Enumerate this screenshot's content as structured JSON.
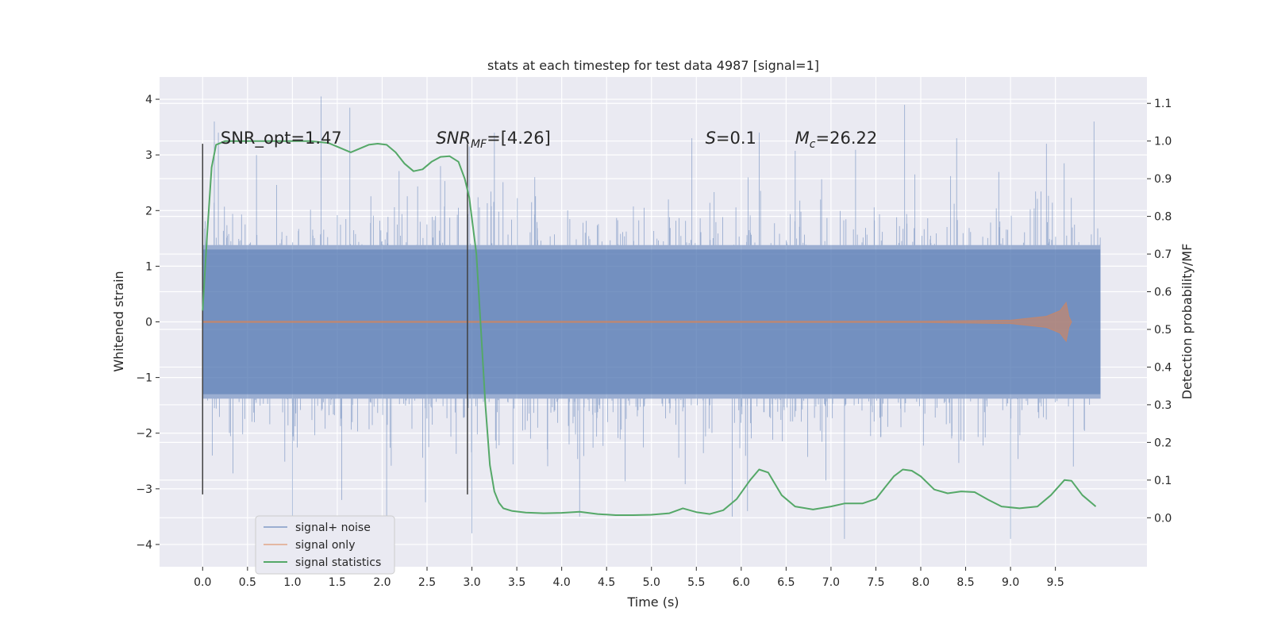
{
  "chart_data": {
    "type": "line",
    "title": "stats at each timestep for test data 4987 [signal=1]",
    "xlabel": "Time (s)",
    "ylabel": "Whitened strain",
    "ylabel_right": "Detection probability/MF",
    "xlim": [
      -0.48,
      10.52
    ],
    "ylim": [
      -4.4,
      4.4
    ],
    "ylim_right": [
      -0.13,
      1.17
    ],
    "x_ticks": [
      0.0,
      0.5,
      1.0,
      1.5,
      2.0,
      2.5,
      3.0,
      3.5,
      4.0,
      4.5,
      5.0,
      5.5,
      6.0,
      6.5,
      7.0,
      7.5,
      8.0,
      8.5,
      9.0,
      9.5
    ],
    "x_tick_labels": [
      "0.0",
      "0.5",
      "1.0",
      "1.5",
      "2.0",
      "2.5",
      "3.0",
      "3.5",
      "4.0",
      "4.5",
      "5.0",
      "5.5",
      "6.0",
      "6.5",
      "7.0",
      "7.5",
      "8.0",
      "8.5",
      "9.0",
      "9.5"
    ],
    "y_ticks": [
      -4,
      -3,
      -2,
      -1,
      0,
      1,
      2,
      3,
      4
    ],
    "y_tick_labels": [
      "−4",
      "−3",
      "−2",
      "−1",
      "0",
      "1",
      "2",
      "3",
      "4"
    ],
    "y_ticks_right": [
      0.0,
      0.1,
      0.2,
      0.3,
      0.4,
      0.5,
      0.6,
      0.7,
      0.8,
      0.9,
      1.0,
      1.1
    ],
    "y_tick_labels_right": [
      "0.0",
      "0.1",
      "0.2",
      "0.3",
      "0.4",
      "0.5",
      "0.6",
      "0.7",
      "0.8",
      "0.9",
      "1.0",
      "1.1"
    ],
    "grid": true,
    "legend_position": "lower-left",
    "series": [
      {
        "name": "signal+ noise",
        "color": "#4c72b0",
        "axis": "left",
        "x_range": [
          0.0,
          10.0
        ],
        "typical_range": [
          -1.3,
          1.3
        ],
        "peaks": [
          [
            0.13,
            3.6
          ],
          [
            0.6,
            3.0
          ],
          [
            1.0,
            -3.5
          ],
          [
            1.32,
            4.05
          ],
          [
            1.64,
            3.85
          ],
          [
            1.55,
            -3.2
          ],
          [
            2.05,
            -3.6
          ],
          [
            2.65,
            2.8
          ],
          [
            2.97,
            3.15
          ],
          [
            3.0,
            -3.8
          ],
          [
            3.25,
            3.4
          ],
          [
            3.7,
            2.6
          ],
          [
            4.2,
            -3.5
          ],
          [
            5.45,
            3.3
          ],
          [
            5.9,
            -3.5
          ],
          [
            6.07,
            -3.4
          ],
          [
            6.2,
            3.4
          ],
          [
            7.15,
            -3.9
          ],
          [
            7.82,
            3.9
          ],
          [
            8.4,
            3.3
          ],
          [
            9.0,
            -3.9
          ],
          [
            9.4,
            3.2
          ],
          [
            9.7,
            -2.6
          ],
          [
            9.93,
            3.6
          ]
        ]
      },
      {
        "name": "signal only",
        "color": "#dd8452",
        "axis": "left",
        "x": [
          0.0,
          8.0,
          9.0,
          9.4,
          9.55,
          9.62,
          9.65,
          9.68
        ],
        "envelope": [
          0.01,
          0.01,
          0.03,
          0.1,
          0.2,
          0.35,
          0.1,
          0.0
        ]
      },
      {
        "name": "signal statistics",
        "color": "#55a868",
        "axis": "right",
        "x": [
          0.0,
          0.05,
          0.1,
          0.15,
          0.25,
          0.5,
          0.8,
          1.2,
          1.4,
          1.55,
          1.65,
          1.75,
          1.85,
          1.95,
          2.05,
          2.15,
          2.25,
          2.35,
          2.45,
          2.55,
          2.65,
          2.75,
          2.85,
          2.92,
          2.97,
          3.05,
          3.1,
          3.15,
          3.2,
          3.25,
          3.3,
          3.35,
          3.45,
          3.6,
          3.8,
          4.0,
          4.2,
          4.4,
          4.6,
          4.8,
          5.0,
          5.2,
          5.35,
          5.5,
          5.65,
          5.8,
          5.95,
          6.1,
          6.2,
          6.3,
          6.45,
          6.6,
          6.8,
          7.0,
          7.15,
          7.35,
          7.5,
          7.6,
          7.7,
          7.8,
          7.9,
          8.0,
          8.15,
          8.3,
          8.45,
          8.6,
          8.75,
          8.9,
          9.1,
          9.3,
          9.45,
          9.6,
          9.68,
          9.8,
          9.95
        ],
        "values": [
          0.55,
          0.75,
          0.93,
          0.99,
          1.0,
          1.0,
          1.0,
          1.0,
          0.995,
          0.98,
          0.97,
          0.98,
          0.99,
          0.993,
          0.99,
          0.97,
          0.94,
          0.92,
          0.925,
          0.945,
          0.958,
          0.96,
          0.945,
          0.9,
          0.85,
          0.7,
          0.5,
          0.3,
          0.14,
          0.07,
          0.04,
          0.025,
          0.018,
          0.014,
          0.012,
          0.013,
          0.016,
          0.01,
          0.007,
          0.007,
          0.008,
          0.012,
          0.025,
          0.015,
          0.01,
          0.02,
          0.05,
          0.1,
          0.128,
          0.12,
          0.06,
          0.03,
          0.022,
          0.03,
          0.038,
          0.038,
          0.05,
          0.08,
          0.11,
          0.128,
          0.125,
          0.11,
          0.075,
          0.065,
          0.07,
          0.068,
          0.048,
          0.03,
          0.025,
          0.03,
          0.06,
          0.1,
          0.098,
          0.06,
          0.03
        ]
      }
    ],
    "vlines": [
      0.0,
      2.95
    ],
    "vline_range": [
      -3.1,
      3.2
    ],
    "annotations": [
      {
        "text": "SNR_opt=1.47",
        "x": 0.2
      },
      {
        "math": "SNR",
        "sub": "MF",
        "rest": "=[4.26]",
        "x": 2.6
      },
      {
        "math": "S",
        "rest": "=0.1",
        "x": 5.6
      },
      {
        "math": "M",
        "sub": "c",
        "rest": "=26.22",
        "x": 6.6
      }
    ],
    "annotation_y": 3.2
  }
}
